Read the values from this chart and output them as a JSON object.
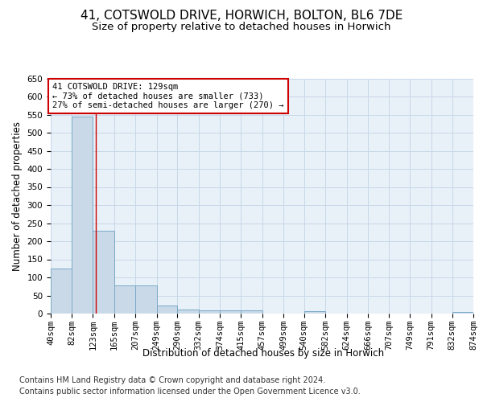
{
  "title": "41, COTSWOLD DRIVE, HORWICH, BOLTON, BL6 7DE",
  "subtitle": "Size of property relative to detached houses in Horwich",
  "xlabel": "Distribution of detached houses by size in Horwich",
  "ylabel": "Number of detached properties",
  "bin_edges": [
    40,
    82,
    123,
    165,
    207,
    249,
    290,
    332,
    374,
    415,
    457,
    499,
    540,
    582,
    624,
    666,
    707,
    749,
    791,
    832,
    874
  ],
  "bar_heights": [
    125,
    545,
    230,
    77,
    77,
    22,
    12,
    9,
    8,
    8,
    0,
    0,
    7,
    0,
    0,
    0,
    0,
    0,
    0,
    5
  ],
  "bar_facecolor": "#c9d9e8",
  "bar_edgecolor": "#7aaac8",
  "property_size": 129,
  "property_line_color": "#cc0000",
  "annotation_text": "41 COTSWOLD DRIVE: 129sqm\n← 73% of detached houses are smaller (733)\n27% of semi-detached houses are larger (270) →",
  "annotation_box_color": "#cc0000",
  "grid_color": "#c8d8e8",
  "background_color": "#e8f0f8",
  "ylim": [
    0,
    650
  ],
  "yticks": [
    0,
    50,
    100,
    150,
    200,
    250,
    300,
    350,
    400,
    450,
    500,
    550,
    600,
    650
  ],
  "footer_line1": "Contains HM Land Registry data © Crown copyright and database right 2024.",
  "footer_line2": "Contains public sector information licensed under the Open Government Licence v3.0.",
  "title_fontsize": 11,
  "subtitle_fontsize": 9.5,
  "axis_label_fontsize": 8.5,
  "tick_fontsize": 7.5,
  "annotation_fontsize": 7.5,
  "footer_fontsize": 7
}
